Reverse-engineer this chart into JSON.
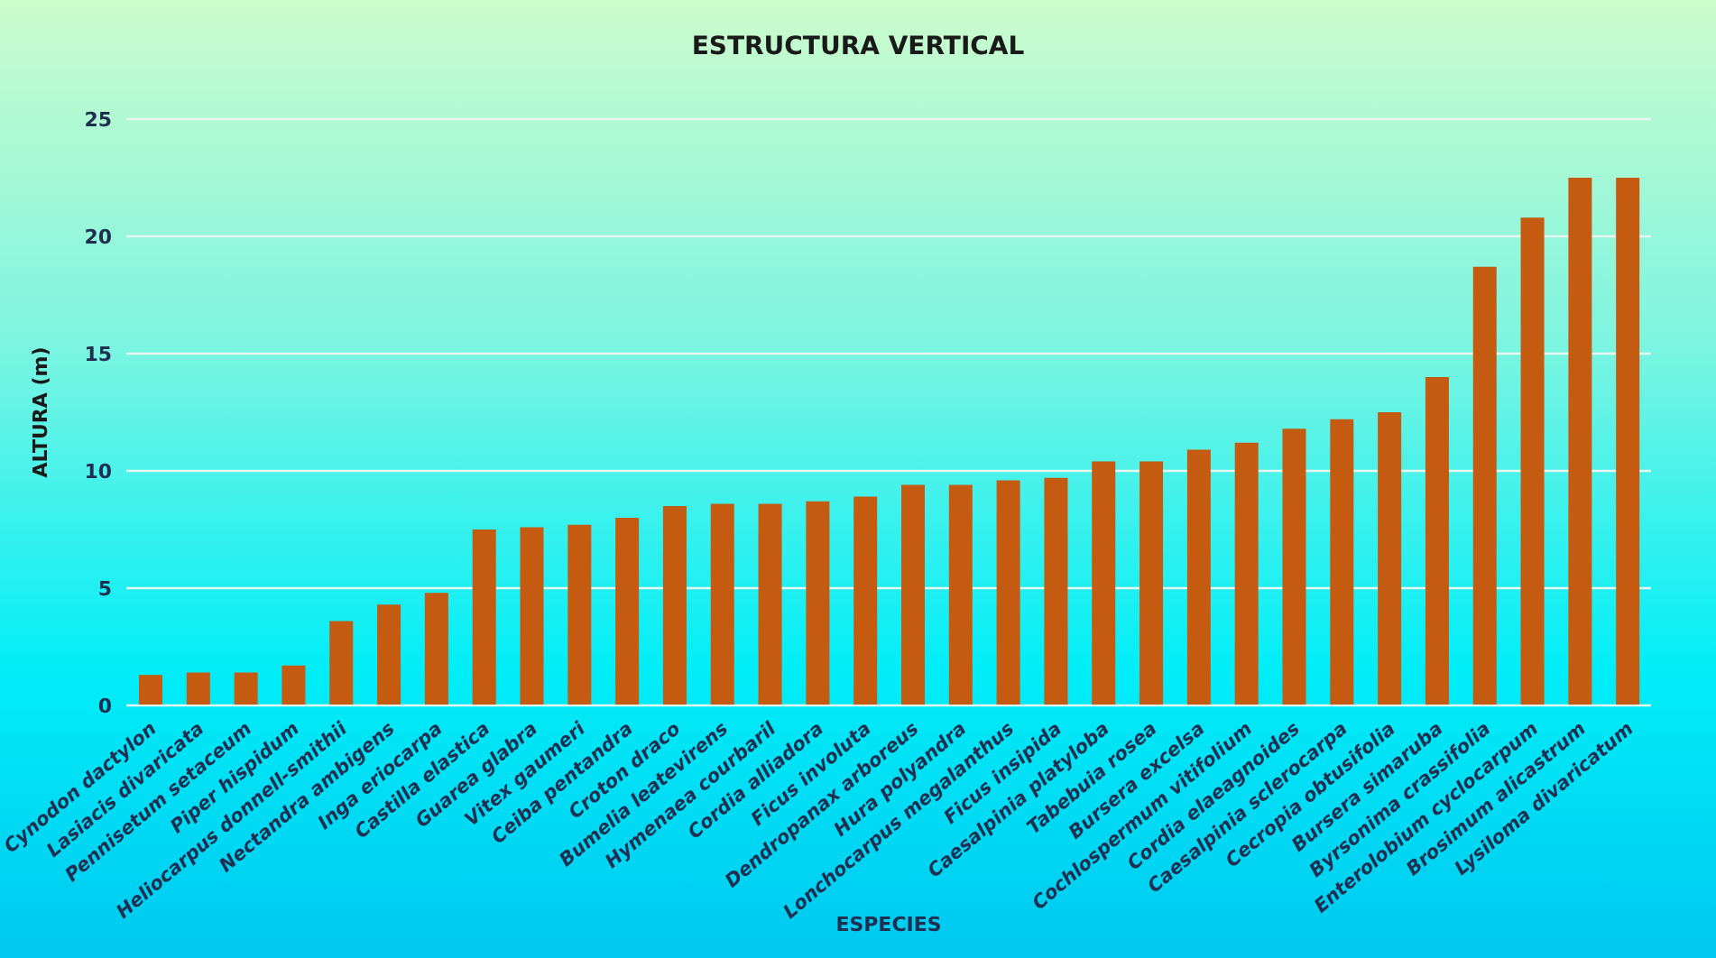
{
  "chart_data": {
    "type": "bar",
    "title": "ESTRUCTURA VERTICAL",
    "xlabel": "ESPECIES",
    "ylabel": "ALTURA (m)",
    "categories": [
      "Cynodon dactylon",
      "Lasiacis divaricata",
      "Pennisetum setaceum",
      "Piper hispidum",
      "Heliocarpus donnell-smithii",
      "Nectandra ambigens",
      "Inga eriocarpa",
      "Castilla elastica",
      "Guarea glabra",
      "Vitex gaumeri",
      "Ceiba pentandra",
      "Croton draco",
      "Bumelia leatevirens",
      "Hymenaea courbaril",
      "Cordia alliadora",
      "Ficus involuta",
      "Dendropanax arboreus",
      "Hura polyandra",
      "Lonchocarpus megalanthus",
      "Ficus insipida",
      "Caesalpinia platyloba",
      "Tabebuia rosea",
      "Bursera excelsa",
      "Cochlospermum vitifolium",
      "Cordia elaeagnoides",
      "Caesalpinia  sclerocarpa",
      "Cecropia obtusifolia",
      "Bursera simaruba",
      "Byrsonima crassifolia",
      "Enterolobium cyclocarpum",
      "Brosimum alicastrum",
      "Lysiloma divaricatum"
    ],
    "values": [
      1.3,
      1.4,
      1.4,
      1.7,
      3.6,
      4.3,
      4.8,
      7.5,
      7.6,
      7.7,
      8.0,
      8.5,
      8.6,
      8.6,
      8.7,
      8.9,
      9.4,
      9.4,
      9.6,
      9.7,
      10.4,
      10.4,
      10.9,
      11.2,
      11.8,
      12.2,
      12.5,
      14.0,
      18.7,
      20.8,
      22.5,
      22.5
    ],
    "color": "#c55a11",
    "ylim": [
      0,
      25
    ],
    "yticks": [
      0,
      5,
      10,
      15,
      20,
      25
    ],
    "grid": "y"
  }
}
